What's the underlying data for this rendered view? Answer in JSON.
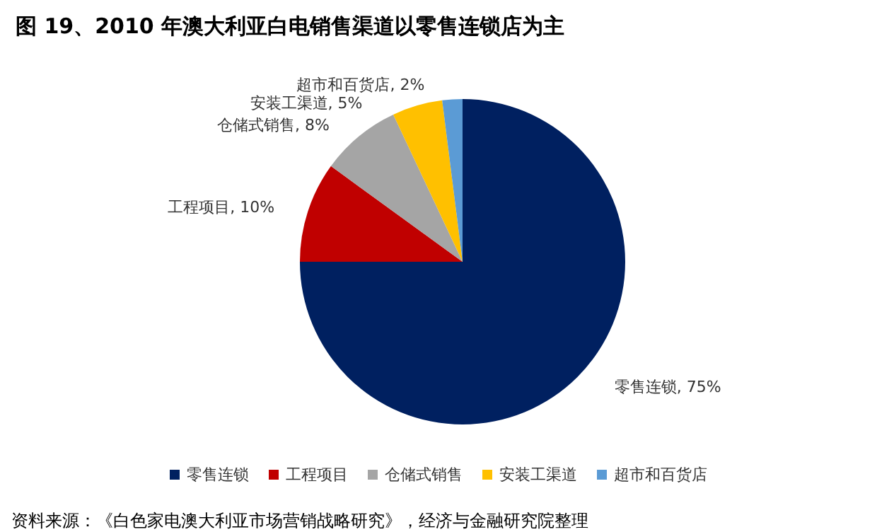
{
  "chart_data": {
    "type": "pie",
    "title": "图 19、2010 年澳大利亚白电销售渠道以零售连锁店为主",
    "categories": [
      "零售连锁",
      "工程项目",
      "仓储式销售",
      "安装工渠道",
      "超市和百货店"
    ],
    "values": [
      75,
      10,
      8,
      5,
      2
    ],
    "value_labels": [
      ", 75%",
      ", 10%",
      ", 8%",
      ", 5%",
      ", 2%"
    ],
    "colors": [
      "#002060",
      "#c00000",
      "#a5a5a5",
      "#ffc000",
      "#5b9bd5"
    ],
    "legend": "bottom",
    "annotations": [
      "资料来源：《白色家电澳大利亚市场营销战略研究》，经济与金融研究院整理"
    ]
  }
}
